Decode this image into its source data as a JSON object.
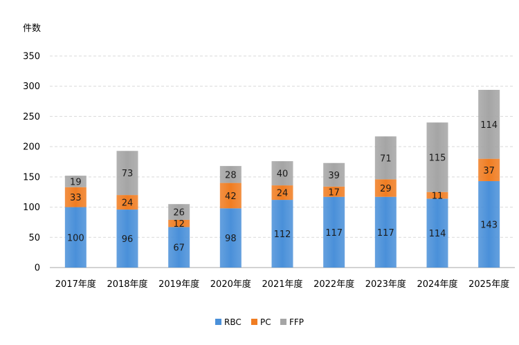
{
  "chart_data": {
    "type": "bar",
    "stacked": true,
    "ylabel": "件数",
    "ylim": [
      0,
      350
    ],
    "yticks": [
      0,
      50,
      100,
      150,
      200,
      250,
      300,
      350
    ],
    "grid": true,
    "legend_position": "bottom",
    "categories": [
      "2017年度",
      "2018年度",
      "2019年度",
      "2020年度",
      "2021年度",
      "2022年度",
      "2023年度",
      "2024年度",
      "2025年度"
    ],
    "series": [
      {
        "name": "RBC",
        "color": "#4a90d9",
        "values": [
          100,
          96,
          67,
          98,
          112,
          117,
          117,
          114,
          143
        ]
      },
      {
        "name": "PC",
        "color": "#f07d22",
        "values": [
          33,
          24,
          12,
          42,
          24,
          17,
          29,
          11,
          37
        ]
      },
      {
        "name": "FFP",
        "color": "#a5a5a5",
        "values": [
          19,
          73,
          26,
          28,
          40,
          39,
          71,
          115,
          114
        ]
      }
    ]
  }
}
